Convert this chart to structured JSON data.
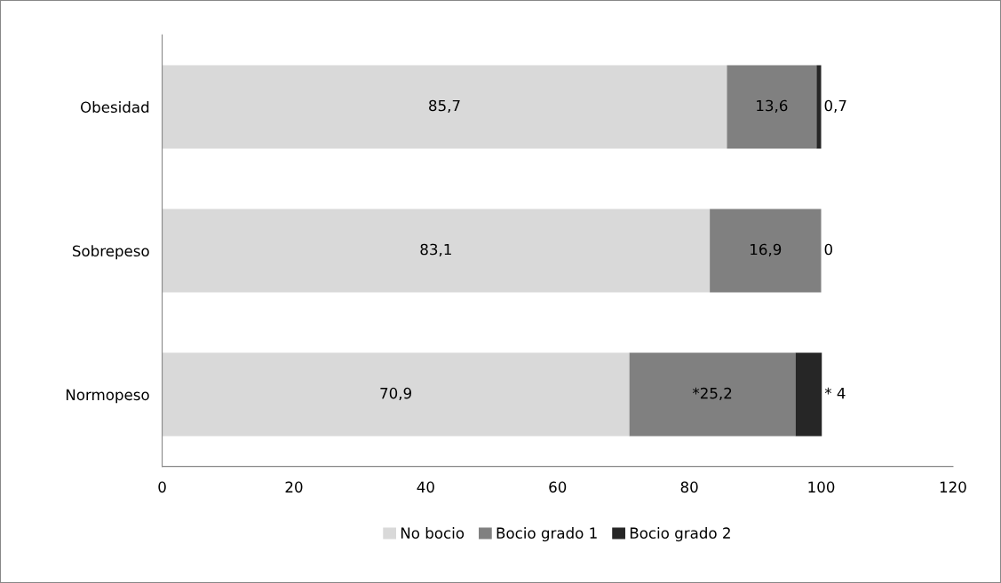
{
  "chart_data": {
    "type": "bar",
    "orientation": "horizontal",
    "stacked": true,
    "categories": [
      "Obesidad",
      "Sobrepeso",
      "Normopeso"
    ],
    "series": [
      {
        "name": "No bocio",
        "color": "#d9d9d9",
        "values": [
          85.7,
          83.1,
          70.9
        ],
        "value_labels": [
          "85,7",
          "83,1",
          "70,9"
        ]
      },
      {
        "name": "Bocio grado 1",
        "color": "#808080",
        "values": [
          13.6,
          16.9,
          25.2
        ],
        "value_labels": [
          "13,6",
          "16,9",
          "*25,2"
        ]
      },
      {
        "name": "Bocio grado 2",
        "color": "#262626",
        "values": [
          0.7,
          0,
          4
        ],
        "value_labels": [
          "0,7",
          "0",
          "* 4"
        ]
      }
    ],
    "xlim": [
      0,
      120
    ],
    "xticks": [
      0,
      20,
      40,
      60,
      80,
      100,
      120
    ],
    "grid": false,
    "legend": "bottom"
  }
}
